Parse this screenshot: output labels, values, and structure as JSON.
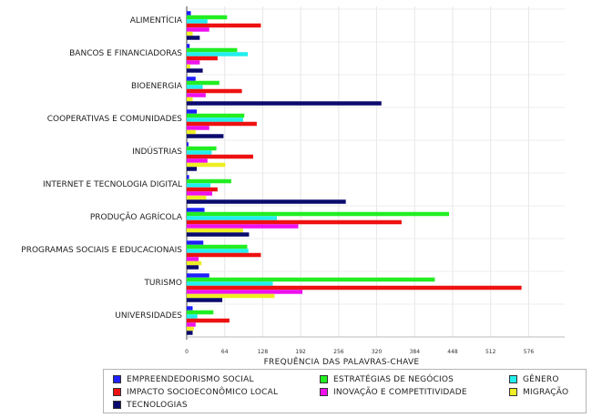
{
  "chart_data": {
    "type": "bar",
    "orientation": "horizontal",
    "categories": [
      "ALIMENTÍCIA",
      "BANCOS E FINANCIADORAS",
      "BIOENERGIA",
      "COOPERATIVAS E COMUNIDADES",
      "INDÚSTRIAS",
      "INTERNET E TECNOLOGIA DIGITAL",
      "PRODUÇÃO AGRÍCOLA",
      "PROGRAMAS SOCIAIS E EDUCACIONAIS",
      "TURISMO",
      "UNIVERSIDADES"
    ],
    "series": [
      {
        "name": "EMPREENDEDORISMO SOCIAL",
        "color": "#1f1fff",
        "values": [
          7,
          5,
          15,
          17,
          3,
          4,
          30,
          28,
          38,
          10
        ]
      },
      {
        "name": "ESTRATÉGIAS DE NEGÓCIOS",
        "color": "#22ee22",
        "values": [
          68,
          85,
          55,
          97,
          50,
          75,
          442,
          102,
          418,
          45
        ]
      },
      {
        "name": "GÊNERO",
        "color": "#22eeee",
        "values": [
          35,
          103,
          27,
          95,
          42,
          40,
          152,
          104,
          145,
          18
        ]
      },
      {
        "name": "IMPACTO SOCIOECONÔMICO LOCAL",
        "color": "#ee1111",
        "values": [
          125,
          52,
          93,
          118,
          112,
          52,
          362,
          125,
          564,
          72
        ]
      },
      {
        "name": "INOVAÇÃO E COMPETITIVIDADE",
        "color": "#ee11ee",
        "values": [
          38,
          22,
          32,
          38,
          35,
          43,
          188,
          20,
          195,
          15
        ]
      },
      {
        "name": "MIGRAÇÃO",
        "color": "#eeee22",
        "values": [
          10,
          6,
          10,
          15,
          65,
          33,
          95,
          25,
          148,
          12
        ]
      },
      {
        "name": "TECNOLOGIAS",
        "color": "#0a0a6e",
        "values": [
          22,
          27,
          328,
          62,
          17,
          268,
          105,
          20,
          60,
          10
        ]
      }
    ],
    "xlabel": "FREQUÊNCIA DAS PALAVRAS-CHAVE",
    "ylabel": "",
    "xlim": [
      0,
      600
    ],
    "xticks": [
      0,
      64,
      128,
      192,
      256,
      320,
      384,
      448,
      512,
      576
    ],
    "grid": true,
    "legend_position": "bottom"
  },
  "legend": {
    "items": [
      {
        "label": "EMPREENDEDORISMO SOCIAL",
        "color": "#1f1fff"
      },
      {
        "label": "ESTRATÉGIAS DE NEGÓCIOS",
        "color": "#22ee22"
      },
      {
        "label": "GÊNERO",
        "color": "#22eeee"
      },
      {
        "label": "IMPACTO SOCIOECONÔMICO LOCAL",
        "color": "#ee1111"
      },
      {
        "label": "INOVAÇÃO E COMPETITIVIDADE",
        "color": "#ee11ee"
      },
      {
        "label": "MIGRAÇÃO",
        "color": "#eeee22"
      },
      {
        "label": "TECNOLOGIAS",
        "color": "#0a0a6e"
      }
    ]
  }
}
